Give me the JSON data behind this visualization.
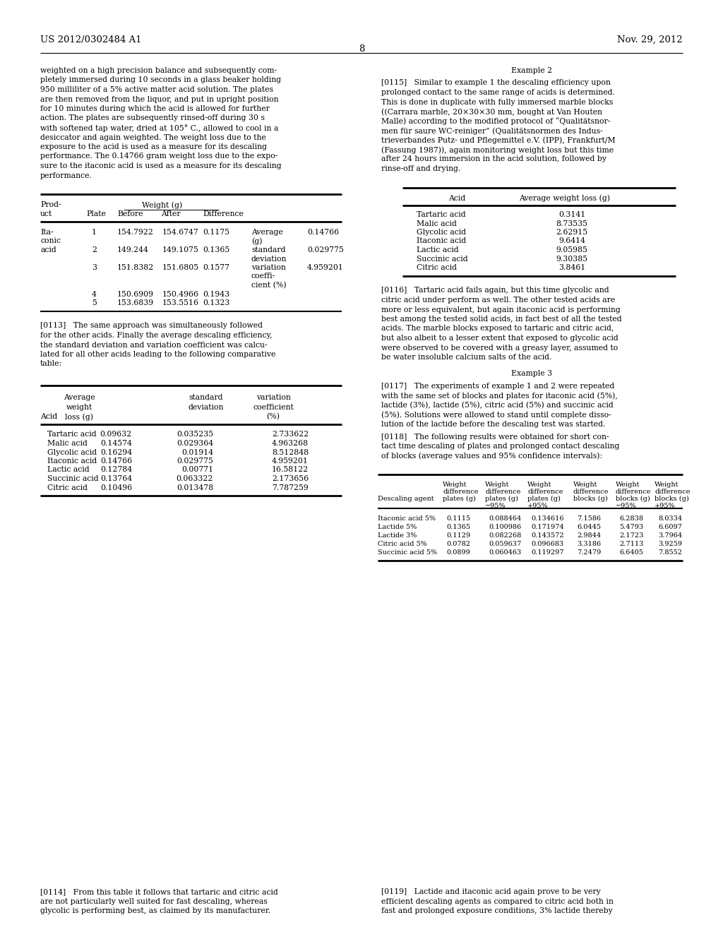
{
  "page_num": "8",
  "header_left": "US 2012/0302484 A1",
  "header_right": "Nov. 29, 2012",
  "bg_color": "#ffffff",
  "left_para1_lines": [
    "weighted on a high precision balance and subsequently com-",
    "pletely immersed during 10 seconds in a glass beaker holding",
    "950 milliliter of a 5% active matter acid solution. The plates",
    "are then removed from the liquor, and put in upright position",
    "for 10 minutes during which the acid is allowed for further",
    "action. The plates are subsequently rinsed-off during 30 s",
    "with softened tap water, dried at 105° C., allowed to cool in a",
    "desiccator and again weighted. The weight loss due to the",
    "exposure to the acid is used as a measure for its descaling",
    "performance. The 0.14766 gram weight loss due to the expo-",
    "sure to the itaconic acid is used as a measure for its descaling",
    "performance."
  ],
  "para113_lines": [
    "[0113]   The same approach was simultaneously followed",
    "for the other acids. Finally the average descaling efficiency,",
    "the standard deviation and variation coefficient was calcu-",
    "lated for all other acids leading to the following comparative",
    "table:"
  ],
  "bottom_left_para114_lines": [
    "[0114]   From this table it follows that tartaric and citric acid",
    "are not particularly well suited for fast descaling, whereas",
    "glycolic is performing best, as claimed by its manufacturer."
  ],
  "right_ex2_title": "Example 2",
  "right_para115_lines": [
    "[0115]   Similar to example 1 the descaling efficiency upon",
    "prolonged contact to the same range of acids is determined.",
    "This is done in duplicate with fully immersed marble blocks",
    "((Carrara marble, 20×30×30 mm, bought at Van Houten",
    "Malle) according to the modified protocol of “Qualitätsnor-",
    "men für saure WC-reiniger” (Qualitätsnormen des Indus-",
    "trieverbandes Putz- und Pflegemittel e.V. (IPP), Frankfurt/M",
    "(Fassung 1987)), again monitoring weight loss but this time",
    "after 24 hours immersion in the acid solution, followed by",
    "rinse-off and drying."
  ],
  "right_para116_lines": [
    "[0116]   Tartaric acid fails again, but this time glycolic and",
    "citric acid under perform as well. The other tested acids are",
    "more or less equivalent, but again itaconic acid is performing",
    "best among the tested solid acids, in fact best of all the tested",
    "acids. The marble blocks exposed to tartaric and citric acid,",
    "but also albeit to a lesser extent that exposed to glycolic acid",
    "were observed to be covered with a greasy layer, assumed to",
    "be water insoluble calcium salts of the acid."
  ],
  "right_ex3_title": "Example 3",
  "right_para117_lines": [
    "[0117]   The experiments of example 1 and 2 were repeated",
    "with the same set of blocks and plates for itaconic acid (5%),",
    "lactide (3%), lactide (5%), citric acid (5%) and succinic acid",
    "(5%). Solutions were allowed to stand until complete disso-",
    "lution of the lactide before the descaling test was started."
  ],
  "right_para118_lines": [
    "[0118]   The following results were obtained for short con-",
    "tact time descaling of plates and prolonged contact descaling",
    "of blocks (average values and 95% confidence intervals):"
  ],
  "bottom_right_para119_lines": [
    "[0119]   Lactide and itaconic acid again prove to be very",
    "efficient descaling agents as compared to citric acid both in",
    "fast and prolonged exposure conditions, 3% lactide thereby"
  ],
  "table1_rows": [
    [
      "Ita-",
      "1",
      "154.7922",
      "154.6747",
      "0.1175",
      "Average",
      "0.14766"
    ],
    [
      "conic",
      "",
      "",
      "",
      "",
      "(g)",
      ""
    ],
    [
      "acid",
      "2",
      "149.244",
      "149.1075",
      "0.1365",
      "standard",
      "0.029775"
    ],
    [
      "",
      "",
      "",
      "",
      "",
      "deviation",
      ""
    ],
    [
      "",
      "3",
      "151.8382",
      "151.6805",
      "0.1577",
      "variation",
      "4.959201"
    ],
    [
      "",
      "",
      "",
      "",
      "",
      "coeffi-",
      ""
    ],
    [
      "",
      "",
      "",
      "",
      "",
      "cient (%)",
      ""
    ],
    [
      "",
      "4",
      "150.6909",
      "150.4966",
      "0.1943",
      "",
      ""
    ],
    [
      "",
      "5",
      "153.6839",
      "153.5516",
      "0.1323",
      "",
      ""
    ]
  ],
  "table2_rows": [
    [
      "Tartaric acid",
      "0.09632",
      "0.035235",
      "2.733622"
    ],
    [
      "Malic acid",
      "0.14574",
      "0.029364",
      "4.963268"
    ],
    [
      "Glycolic acid",
      "0.16294",
      "0.01914",
      "8.512848"
    ],
    [
      "Itaconic acid",
      "0.14766",
      "0.029775",
      "4.959201"
    ],
    [
      "Lactic acid",
      "0.12784",
      "0.00771",
      "16.58122"
    ],
    [
      "Succinic acid",
      "0.13764",
      "0.063322",
      "2.173656"
    ],
    [
      "Citric acid",
      "0.10496",
      "0.013478",
      "7.787259"
    ]
  ],
  "table3_rows": [
    [
      "Tartaric acid",
      "0.3141"
    ],
    [
      "Malic acid",
      "8.73535"
    ],
    [
      "Glycolic acid",
      "2.62915"
    ],
    [
      "Itaconic acid",
      "9.6414"
    ],
    [
      "Lactic acid",
      "9.05985"
    ],
    [
      "Succinic acid",
      "9.30385"
    ],
    [
      "Citric acid",
      "3.8461"
    ]
  ],
  "table4_rows": [
    [
      "Itaconic acid 5%",
      "0.1115",
      "0.088464",
      "0.134616",
      "7.1586",
      "6.2838",
      "8.0334"
    ],
    [
      "Lactide 5%",
      "0.1365",
      "0.100986",
      "0.171974",
      "6.0445",
      "5.4793",
      "6.6097"
    ],
    [
      "Lactide 3%",
      "0.1129",
      "0.082268",
      "0.143572",
      "2.9844",
      "2.1723",
      "3.7964"
    ],
    [
      "Citric acid 5%",
      "0.0782",
      "0.059637",
      "0.096683",
      "3.3186",
      "2.7113",
      "3.9259"
    ],
    [
      "Succinic acid 5%",
      "0.0899",
      "0.060463",
      "0.119297",
      "7.2479",
      "6.6405",
      "7.8552"
    ]
  ]
}
